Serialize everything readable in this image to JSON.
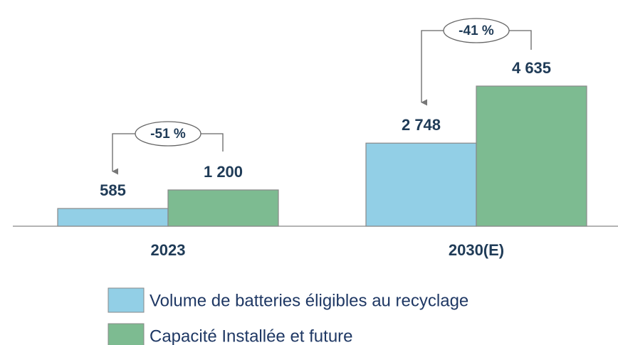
{
  "chart_data": {
    "type": "bar",
    "categories": [
      "2023",
      "2030(E)"
    ],
    "series": [
      {
        "name": "Volume de batteries éligibles au recyclage",
        "color": "#92cfe6",
        "values": [
          585,
          2748
        ],
        "value_labels": [
          "585",
          "2 748"
        ]
      },
      {
        "name": "Capacité Installée et future",
        "color": "#7dbb91",
        "values": [
          1200,
          4635
        ],
        "value_labels": [
          "1 200",
          "4 635"
        ]
      }
    ],
    "annotations": [
      "-51 %",
      "-41 %"
    ]
  }
}
